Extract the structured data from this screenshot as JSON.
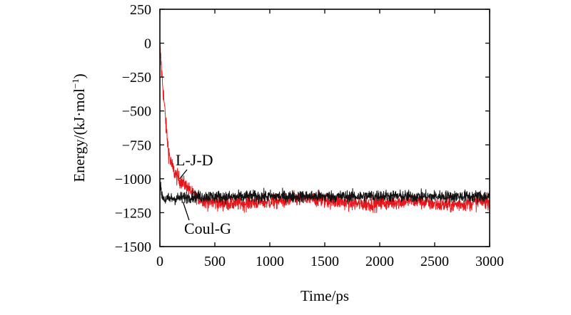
{
  "chart_data": {
    "type": "line",
    "title": "",
    "xlabel": "Time/ps",
    "ylabel": "Energy/(kJ·mol",
    "ylabel_sup": "−1",
    "ylabel_close": ")",
    "xlim": [
      0,
      3000
    ],
    "ylim": [
      -1500,
      250
    ],
    "xticks": [
      0,
      500,
      1000,
      1500,
      2000,
      2500,
      3000
    ],
    "xtick_labels": [
      "0",
      "500",
      "1000",
      "1500",
      "2000",
      "2500",
      "3000"
    ],
    "yticks": [
      250,
      0,
      -250,
      -500,
      -750,
      -1000,
      -1250,
      -1500
    ],
    "ytick_labels": [
      "250",
      "0",
      "−250",
      "−500",
      "−750",
      "−1000",
      "−1250",
      "−1500"
    ],
    "grid": false,
    "legend": "none",
    "series": [
      {
        "name": "L-J-D",
        "color": "#e8161b",
        "x": [
          0,
          20,
          40,
          60,
          80,
          100,
          120,
          150,
          180,
          210,
          250,
          300,
          350,
          400,
          450,
          500,
          600,
          700,
          800,
          900,
          1000,
          1100,
          1200,
          1300,
          1400,
          1500,
          1600,
          1700,
          1800,
          1900,
          2000,
          2100,
          2200,
          2300,
          2400,
          2500,
          2600,
          2700,
          2800,
          2900,
          3000
        ],
        "y": [
          -30,
          -250,
          -450,
          -650,
          -800,
          -880,
          -930,
          -980,
          -1010,
          -1030,
          -1060,
          -1110,
          -1150,
          -1165,
          -1170,
          -1175,
          -1180,
          -1180,
          -1178,
          -1170,
          -1170,
          -1165,
          -1155,
          -1150,
          -1150,
          -1160,
          -1165,
          -1175,
          -1185,
          -1185,
          -1180,
          -1175,
          -1165,
          -1160,
          -1170,
          -1185,
          -1195,
          -1190,
          -1180,
          -1170,
          -1160
        ]
      },
      {
        "name": "Coul-G",
        "color": "#111111",
        "x": [
          0,
          20,
          40,
          60,
          80,
          100,
          150,
          200,
          250,
          300,
          400,
          500,
          600,
          700,
          800,
          900,
          1000,
          1200,
          1400,
          1600,
          1800,
          2000,
          2200,
          2400,
          2600,
          2800,
          3000
        ],
        "y": [
          -1050,
          -1120,
          -1150,
          -1155,
          -1150,
          -1145,
          -1145,
          -1140,
          -1135,
          -1130,
          -1130,
          -1130,
          -1135,
          -1135,
          -1130,
          -1130,
          -1130,
          -1130,
          -1130,
          -1130,
          -1130,
          -1125,
          -1130,
          -1130,
          -1130,
          -1130,
          -1130
        ]
      }
    ],
    "annotations": [
      {
        "text": "L-J-D",
        "x": 160,
        "y": -870,
        "arrow_to": [
          180,
          -1000
        ]
      },
      {
        "text": "Coul-G",
        "x": 270,
        "y": -1330,
        "arrow_to": [
          210,
          -1170
        ]
      }
    ]
  }
}
